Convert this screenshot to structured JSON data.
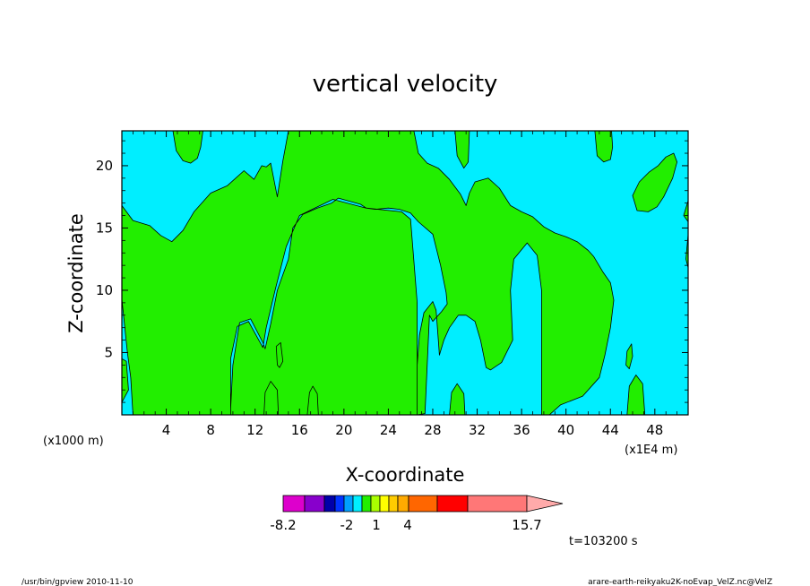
{
  "chart_data": {
    "type": "heatmap",
    "title": "vertical velocity",
    "xlabel": "X-coordinate",
    "ylabel": "Z-coordinate",
    "x_unit_left": "(x1000 m)",
    "x_unit_right": "(x1E4 m)",
    "xlim": [
      0,
      51
    ],
    "ylim": [
      0,
      22.8
    ],
    "xticks": [
      4,
      8,
      12,
      16,
      20,
      24,
      28,
      32,
      36,
      40,
      44,
      48
    ],
    "yticks": [
      5,
      10,
      15,
      20
    ],
    "regions": {
      "background": {
        "level": "negative",
        "color": "#00eeff"
      },
      "positive": {
        "color": "#22ee00"
      }
    },
    "positive_regions": [
      {
        "name": "main-band",
        "points": [
          [
            0,
            16.8
          ],
          [
            1,
            15.6
          ],
          [
            2.5,
            15.2
          ],
          [
            3.5,
            14.4
          ],
          [
            4.5,
            13.9
          ],
          [
            5.5,
            14.8
          ],
          [
            6.5,
            16.3
          ],
          [
            8,
            17.8
          ],
          [
            9.5,
            18.4
          ],
          [
            11,
            19.6
          ],
          [
            11.9,
            18.9
          ],
          [
            12.6,
            20
          ],
          [
            13,
            19.9
          ],
          [
            13.4,
            20.2
          ],
          [
            14,
            17.5
          ],
          [
            14.5,
            20.4
          ],
          [
            15,
            22.8
          ],
          [
            26.3,
            22.8
          ],
          [
            26.7,
            21
          ],
          [
            27.5,
            20.2
          ],
          [
            28.5,
            19.8
          ],
          [
            29.5,
            18.9
          ],
          [
            30.5,
            17.7
          ],
          [
            31,
            16.8
          ],
          [
            31.3,
            17.8
          ],
          [
            31.8,
            18.7
          ],
          [
            33,
            19
          ],
          [
            34,
            18.2
          ],
          [
            35,
            16.8
          ],
          [
            36,
            16.3
          ],
          [
            37,
            15.9
          ],
          [
            38,
            15.1
          ],
          [
            39,
            14.6
          ],
          [
            40,
            14.3
          ],
          [
            41,
            13.9
          ],
          [
            42,
            13.2
          ],
          [
            42.5,
            12.7
          ],
          [
            43.3,
            11.5
          ],
          [
            44,
            10.6
          ],
          [
            44.3,
            9.2
          ],
          [
            44,
            7
          ],
          [
            43.5,
            4.8
          ],
          [
            43,
            3
          ],
          [
            41.5,
            1.5
          ],
          [
            39.5,
            0.8
          ],
          [
            38.5,
            0
          ],
          [
            37.8,
            0
          ],
          [
            37.8,
            5
          ],
          [
            37.8,
            10
          ],
          [
            37.4,
            12.8
          ],
          [
            36.5,
            13.8
          ],
          [
            35.3,
            12.5
          ],
          [
            35,
            10
          ],
          [
            35.2,
            6
          ],
          [
            34.2,
            4.2
          ],
          [
            33.2,
            3.6
          ],
          [
            32.8,
            3.8
          ],
          [
            32.3,
            6
          ],
          [
            31.8,
            7.5
          ],
          [
            31,
            8
          ],
          [
            30.3,
            8
          ],
          [
            29.5,
            7
          ],
          [
            29,
            6
          ],
          [
            28.6,
            4.8
          ],
          [
            28.5,
            6
          ],
          [
            28.3,
            8.4
          ],
          [
            28,
            9.1
          ],
          [
            27.2,
            8.2
          ],
          [
            26.8,
            6.4
          ],
          [
            26.6,
            4
          ],
          [
            26.6,
            0
          ],
          [
            9.8,
            0
          ],
          [
            9.8,
            0.5
          ],
          [
            10,
            4
          ],
          [
            10.6,
            7.4
          ],
          [
            11.6,
            7.7
          ],
          [
            12.7,
            5.8
          ],
          [
            12.9,
            5.3
          ],
          [
            13.4,
            7.3
          ],
          [
            14,
            10
          ],
          [
            15,
            12.5
          ],
          [
            15.4,
            15
          ],
          [
            16.3,
            16.1
          ],
          [
            17.6,
            16.6
          ],
          [
            18.9,
            17
          ],
          [
            19.5,
            17.4
          ],
          [
            20.3,
            17.2
          ],
          [
            21.5,
            16.9
          ],
          [
            22,
            16.6
          ],
          [
            22.8,
            16.5
          ],
          [
            24,
            16.6
          ],
          [
            25,
            16.5
          ],
          [
            26,
            16.2
          ],
          [
            26.7,
            15.5
          ],
          [
            28,
            14.5
          ],
          [
            28.7,
            12
          ],
          [
            29.2,
            9.8
          ],
          [
            29.3,
            8.9
          ],
          [
            28.8,
            8.3
          ],
          [
            28,
            7.5
          ],
          [
            27.7,
            8
          ],
          [
            27.3,
            0.1
          ],
          [
            26.6,
            0
          ],
          [
            26.6,
            9
          ],
          [
            26,
            15.7
          ],
          [
            25.2,
            16.3
          ],
          [
            22,
            16.6
          ],
          [
            19,
            17.3
          ],
          [
            16,
            16
          ],
          [
            14.8,
            13.5
          ],
          [
            13.8,
            10
          ],
          [
            13,
            7
          ],
          [
            12.7,
            5.4
          ],
          [
            11.4,
            7.5
          ],
          [
            10.4,
            7.1
          ],
          [
            9.8,
            4.5
          ],
          [
            9.8,
            0
          ],
          [
            1,
            0
          ],
          [
            0.8,
            3
          ],
          [
            0.5,
            5
          ],
          [
            0,
            9.3
          ]
        ]
      },
      {
        "name": "top-left-blob",
        "points": [
          [
            4.6,
            22.8
          ],
          [
            4.9,
            21.2
          ],
          [
            5.5,
            20.4
          ],
          [
            6.2,
            20.2
          ],
          [
            6.8,
            20.6
          ],
          [
            7.1,
            21.5
          ],
          [
            7.3,
            22.8
          ]
        ]
      },
      {
        "name": "blob-30-20",
        "points": [
          [
            30,
            22.8
          ],
          [
            30.2,
            20.8
          ],
          [
            30.8,
            19.8
          ],
          [
            31.2,
            20.3
          ],
          [
            31.3,
            22.8
          ]
        ]
      },
      {
        "name": "blob-43-21",
        "points": [
          [
            42.6,
            22.8
          ],
          [
            42.8,
            20.8
          ],
          [
            43.4,
            20.3
          ],
          [
            44,
            20.5
          ],
          [
            44.2,
            21.5
          ],
          [
            44.1,
            22.8
          ]
        ]
      },
      {
        "name": "blob-46-18",
        "points": [
          [
            46,
            17.6
          ],
          [
            46.6,
            18.7
          ],
          [
            47.5,
            19.5
          ],
          [
            48.3,
            20
          ],
          [
            49,
            20.7
          ],
          [
            49.7,
            21
          ],
          [
            50,
            20.3
          ],
          [
            49.6,
            19
          ],
          [
            48.8,
            17.5
          ],
          [
            48.2,
            16.7
          ],
          [
            47.4,
            16.3
          ],
          [
            46.4,
            16.4
          ]
        ]
      },
      {
        "name": "blob-51-16",
        "points": [
          [
            50.6,
            16
          ],
          [
            51,
            17.2
          ],
          [
            51,
            15.5
          ]
        ]
      },
      {
        "name": "blob-51-13",
        "points": [
          [
            50.8,
            12.5
          ],
          [
            51,
            14.5
          ],
          [
            51,
            11.8
          ]
        ]
      },
      {
        "name": "blob-14-5",
        "points": [
          [
            14,
            4
          ],
          [
            13.9,
            5.5
          ],
          [
            14.3,
            5.8
          ],
          [
            14.5,
            4.3
          ],
          [
            14.2,
            3.8
          ]
        ]
      },
      {
        "name": "blob-13-1",
        "points": [
          [
            12.8,
            0
          ],
          [
            12.9,
            1.8
          ],
          [
            13.4,
            2.7
          ],
          [
            14,
            2
          ],
          [
            14.1,
            0
          ]
        ]
      },
      {
        "name": "blob-17-1",
        "points": [
          [
            16.7,
            0
          ],
          [
            16.9,
            1.8
          ],
          [
            17.2,
            2.3
          ],
          [
            17.6,
            1.7
          ],
          [
            17.7,
            0
          ]
        ]
      },
      {
        "name": "blob-30-1",
        "points": [
          [
            29.5,
            0
          ],
          [
            29.7,
            1.8
          ],
          [
            30.2,
            2.5
          ],
          [
            30.8,
            1.7
          ],
          [
            30.9,
            0
          ]
        ]
      },
      {
        "name": "blob-45-4",
        "points": [
          [
            45.4,
            4
          ],
          [
            45.5,
            5.1
          ],
          [
            45.9,
            5.7
          ],
          [
            46,
            4.7
          ],
          [
            45.7,
            3.7
          ]
        ]
      },
      {
        "name": "blob-46-1",
        "points": [
          [
            45.5,
            0
          ],
          [
            45.7,
            2.3
          ],
          [
            46.3,
            3.2
          ],
          [
            46.9,
            2.5
          ],
          [
            47.1,
            0
          ]
        ]
      },
      {
        "name": "blob-0-4",
        "points": [
          [
            0,
            1
          ],
          [
            0,
            4.5
          ],
          [
            0.4,
            4.3
          ],
          [
            0.6,
            2
          ]
        ]
      }
    ],
    "colorbar": {
      "colors": [
        "#dd00cc",
        "#8800cc",
        "#0000aa",
        "#0033ff",
        "#00a0ff",
        "#00eeff",
        "#22ee00",
        "#aaff00",
        "#ffff00",
        "#ffcc00",
        "#ffaa00",
        "#ff6600",
        "#ff0000",
        "#ff7777"
      ],
      "labels": [
        "-8.2",
        "-2",
        "1",
        "4",
        "15.7"
      ],
      "triangle_color": "#ffaaaa"
    },
    "time_label": "t=103200 s"
  },
  "footer": {
    "left": "/usr/bin/gpview   2010-11-10",
    "right": "arare-earth-reikyaku2K-noEvap_VelZ.nc@VelZ"
  }
}
